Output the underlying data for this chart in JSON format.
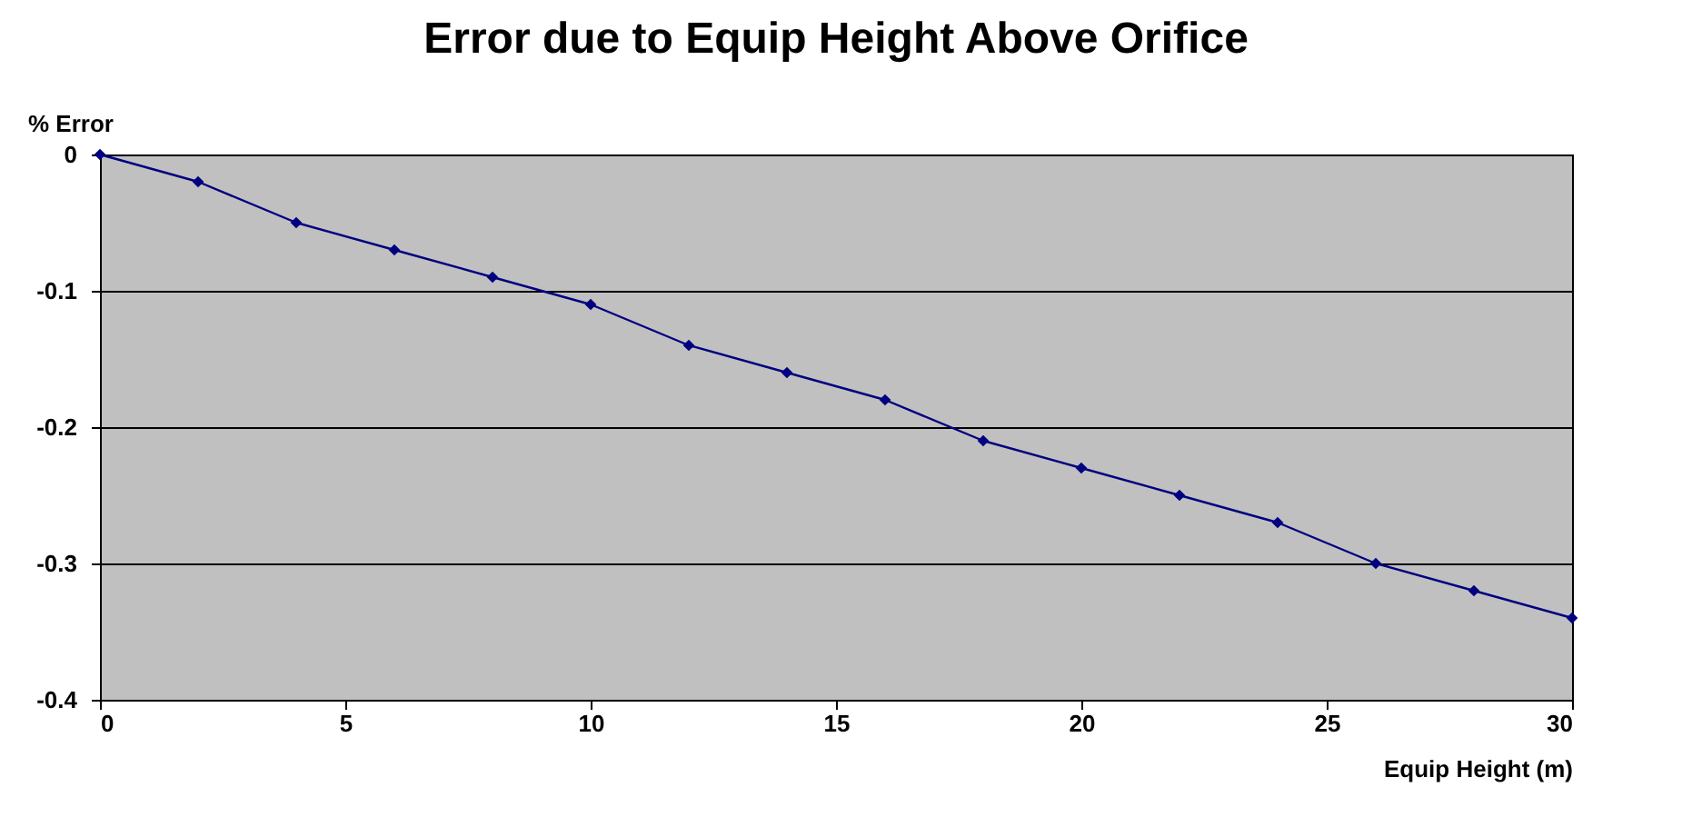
{
  "chart_data": {
    "type": "line",
    "title": "Error due to Equip Height Above Orifice",
    "xlabel": "Equip Height (m)",
    "ylabel": "% Error",
    "x": [
      0,
      2,
      4,
      6,
      8,
      10,
      12,
      14,
      16,
      18,
      20,
      22,
      24,
      26,
      28,
      30
    ],
    "series": [
      {
        "color": "#000080",
        "values": [
          0,
          -0.02,
          -0.05,
          -0.07,
          -0.09,
          -0.11,
          -0.14,
          -0.16,
          -0.18,
          -0.21,
          -0.23,
          -0.25,
          -0.27,
          -0.3,
          -0.32,
          -0.34
        ]
      }
    ],
    "xlim": [
      0,
      30
    ],
    "xticks": [
      0,
      5,
      10,
      15,
      20,
      25,
      30
    ],
    "ylim": [
      -0.4,
      0
    ],
    "yticks": [
      0,
      -0.1,
      -0.2,
      -0.3,
      -0.4
    ],
    "grid": "y",
    "marker": "diamond",
    "line_style": "solid"
  }
}
